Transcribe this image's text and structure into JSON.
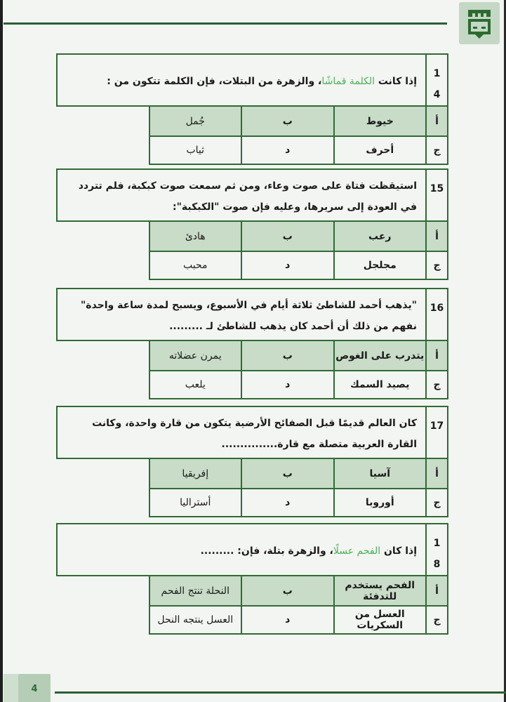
{
  "page": {
    "number": "4"
  },
  "colors": {
    "accent": "#2d5e33",
    "highlight": "#4cb05a",
    "header_row": "#c8dcc8"
  },
  "logo": {
    "icon": "castle-emblem-icon"
  },
  "option_letters": {
    "a": "أ",
    "b": "ب",
    "c": "ج",
    "d": "د"
  },
  "questions": [
    {
      "number": "14",
      "before": "إذا كانت ",
      "highlight": "الكلمة قماشًا",
      "after": "، والزهرة من البتلات، فإن الكلمة تتكون من :",
      "options": {
        "a": "خيوط",
        "b": "جُمل",
        "c": "أحرف",
        "d": "ثياب"
      }
    },
    {
      "number": "15",
      "before": "استيقظت فتاة على صوت وعاء، ومن ثم سمعت صوت كبكبة، فلم تتردد في العودة إلى سريرها، وعليه فإن صوت \"الكبكبة\":",
      "highlight": "",
      "after": "",
      "options": {
        "a": "رعب",
        "b": "هادئ",
        "c": "مجلجل",
        "d": "محبب"
      }
    },
    {
      "number": "16",
      "before": "\"يذهب أحمد للشاطئ ثلاثة أيام في الأسبوع، ويسبح لمدة ساعة واحدة\" نفهم من ذلك أن أحمد كان يذهب للشاطئ لـ .........",
      "highlight": "",
      "after": "",
      "options": {
        "a": "يتدرب على الغوص",
        "b": "يمرن عضلاته",
        "c": "يصيد السمك",
        "d": "يلعب"
      }
    },
    {
      "number": "17",
      "before": "كان العالم قديمًا قبل الصفائح الأرضية يتكون من قارة واحدة، وكانت القارة العربية متصلة مع قارة...............",
      "highlight": "",
      "after": "",
      "options": {
        "a": "آسيا",
        "b": "إفريقيا",
        "c": "أوروبا",
        "d": "أستراليا"
      }
    },
    {
      "number": "18",
      "before": "إذا كان ",
      "highlight": "الفحم عسلًا",
      "after": "، والزهرة بتلة، فإن: .........",
      "options": {
        "a": "الفحم يستخدم للتدفئة",
        "b": "النحلة تنتج الفحم",
        "c": "العسل من السكريات",
        "d": "العسل ينتجه النحل"
      }
    }
  ]
}
